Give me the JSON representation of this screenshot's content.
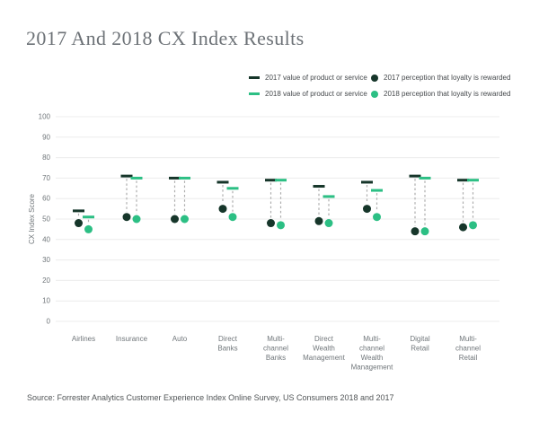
{
  "title": "2017 And 2018 CX Index Results",
  "source": "Source: Forrester Analytics Customer Experience Index Online Survey, US Consumers 2018 and 2017",
  "colors": {
    "year_2017": "#16362a",
    "year_2018": "#2cbf84",
    "connector": "#aeaeae",
    "gridline": "#ececec",
    "axis_text": "#70767a",
    "title_text": "#6d7277"
  },
  "legend": {
    "items": [
      {
        "label": "2017 value of product or service",
        "marker": "dash",
        "color": "#16362a"
      },
      {
        "label": "2017 perception that loyalty is rewarded",
        "marker": "dot",
        "color": "#16362a"
      },
      {
        "label": "2018 value of product or service",
        "marker": "dash",
        "color": "#2cbf84"
      },
      {
        "label": "2018 perception that loyalty is rewarded",
        "marker": "dot",
        "color": "#2cbf84"
      }
    ]
  },
  "chart_data": {
    "type": "scatter",
    "subtype": "dumbbell",
    "title": "2017 And 2018 CX Index Results",
    "xlabel": "",
    "ylabel": "CX Index Score",
    "ylim": [
      0,
      100
    ],
    "yticks": [
      0,
      10,
      20,
      30,
      40,
      50,
      60,
      70,
      80,
      90,
      100
    ],
    "grid": true,
    "legend_position": "top-right",
    "categories": [
      "Airlines",
      "Insurance",
      "Auto",
      "Direct Banks",
      "Multi-channel Banks",
      "Direct Wealth Management",
      "Multi-channel Wealth Management",
      "Digital Retail",
      "Multi-channel Retail"
    ],
    "category_label_lines": [
      [
        "Airlines"
      ],
      [
        "Insurance"
      ],
      [
        "Auto"
      ],
      [
        "Direct",
        "Banks"
      ],
      [
        "Multi-",
        "channel",
        "Banks"
      ],
      [
        "Direct",
        "Wealth",
        "Management"
      ],
      [
        "Multi-",
        "channel",
        "Wealth",
        "Management"
      ],
      [
        "Digital",
        "Retail"
      ],
      [
        "Multi-",
        "channel",
        "Retail"
      ]
    ],
    "series": [
      {
        "name": "2017 value of product or service",
        "marker": "dash",
        "color": "#16362a",
        "values": [
          54,
          71,
          70,
          68,
          69,
          66,
          68,
          71,
          69
        ]
      },
      {
        "name": "2018 value of product or service",
        "marker": "dash",
        "color": "#2cbf84",
        "values": [
          51,
          70,
          70,
          65,
          69,
          61,
          64,
          70,
          69
        ]
      },
      {
        "name": "2017 perception that loyalty is rewarded",
        "marker": "dot",
        "color": "#16362a",
        "values": [
          48,
          51,
          50,
          55,
          48,
          49,
          55,
          44,
          46
        ]
      },
      {
        "name": "2018 perception that loyalty is rewarded",
        "marker": "dot",
        "color": "#2cbf84",
        "values": [
          45,
          50,
          50,
          51,
          47,
          48,
          51,
          44,
          47
        ]
      }
    ]
  }
}
